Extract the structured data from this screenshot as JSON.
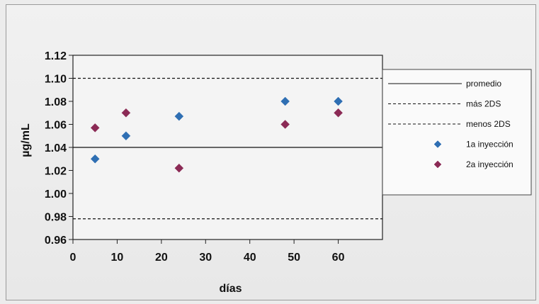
{
  "chart_data": {
    "type": "scatter",
    "title": "",
    "xlabel": "días",
    "ylabel": "µg/mL",
    "xlim": [
      0,
      70
    ],
    "ylim": [
      0.96,
      1.12
    ],
    "x_ticks": [
      "0",
      "10",
      "20",
      "30",
      "40",
      "50",
      "60"
    ],
    "y_ticks": [
      "0.96",
      "0.98",
      "1.00",
      "1.02",
      "1.04",
      "1.06",
      "1.08",
      "1.10",
      "1.12"
    ],
    "grid": false,
    "legend_position": "right",
    "reference_lines": [
      {
        "name": "promedio",
        "y": 1.04,
        "style": "solid"
      },
      {
        "name": "más 2DS",
        "y": 1.1,
        "style": "dashed"
      },
      {
        "name": "menos 2DS",
        "y": 0.978,
        "style": "dashed"
      }
    ],
    "series": [
      {
        "name": "1a inyección",
        "color": "#2f6fb3",
        "marker": "diamond",
        "x": [
          5,
          12,
          24,
          48,
          60
        ],
        "y": [
          1.03,
          1.05,
          1.067,
          1.08,
          1.08
        ]
      },
      {
        "name": "2a inyección",
        "color": "#8b2a55",
        "marker": "diamond",
        "x": [
          5,
          12,
          24,
          48,
          60
        ],
        "y": [
          1.057,
          1.07,
          1.022,
          1.06,
          1.07
        ]
      }
    ]
  }
}
